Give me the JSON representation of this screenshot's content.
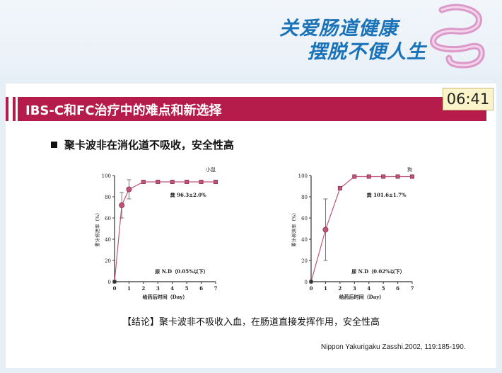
{
  "banner": {
    "logo_line1": "关爱肠道健康",
    "logo_line2": "摆脱不便人生"
  },
  "slide": {
    "title": "IBS-C和FC治疗中的难点和新选择",
    "timer": "06:41",
    "bullet": "聚卡波非在消化道不吸收，安全性高",
    "conclusion": "【结论】聚卡波非不吸收入血，在肠道直接发挥作用，安全性高",
    "citation": "Nippon Yakurigaku Zasshi.2002, 119:185-190."
  },
  "colors": {
    "accent": "#b51b4b",
    "series": "#c0557a",
    "timer_bg": "#fbf3c9",
    "logo": "#1a73b8"
  },
  "chart_data": [
    {
      "type": "line",
      "title": "小鼠",
      "xlabel": "给药后时间（Day）",
      "ylabel": "累计排泄率（%）",
      "xlim": [
        0,
        7
      ],
      "ylim": [
        0,
        100
      ],
      "xticks": [
        "0",
        "1",
        "2",
        "3",
        "4",
        "5",
        "6",
        "7"
      ],
      "yticks": [
        "0",
        "20",
        "40",
        "60",
        "80",
        "100"
      ],
      "annotation_feces": "粪 96.3±2.0%",
      "annotation_urine": "尿 N.D（0.05%以下）",
      "series": [
        {
          "x": [
            0,
            0.5,
            1,
            2,
            3,
            4,
            5,
            6,
            7
          ],
          "y": [
            0,
            72,
            87,
            94,
            94,
            94,
            94,
            94,
            94
          ],
          "err": [
            0,
            12,
            9,
            0,
            0,
            0,
            0,
            0,
            0
          ]
        }
      ]
    },
    {
      "type": "line",
      "title": "狗",
      "xlabel": "给药后时间（Day）",
      "ylabel": "累计排泄率（%）",
      "xlim": [
        0,
        7
      ],
      "ylim": [
        0,
        100
      ],
      "xticks": [
        "0",
        "1",
        "2",
        "3",
        "4",
        "5",
        "6",
        "7"
      ],
      "yticks": [
        "0",
        "20",
        "40",
        "60",
        "80",
        "100"
      ],
      "annotation_feces": "粪 101.6±1.7%",
      "annotation_urine": "尿 N.D（0.02%以下）",
      "series": [
        {
          "x": [
            0,
            1,
            2,
            3,
            4,
            5,
            6,
            7
          ],
          "y": [
            0,
            49,
            88,
            99,
            99,
            99,
            99,
            99
          ],
          "err": [
            0,
            29,
            0,
            0,
            0,
            0,
            0,
            0
          ]
        }
      ]
    }
  ]
}
